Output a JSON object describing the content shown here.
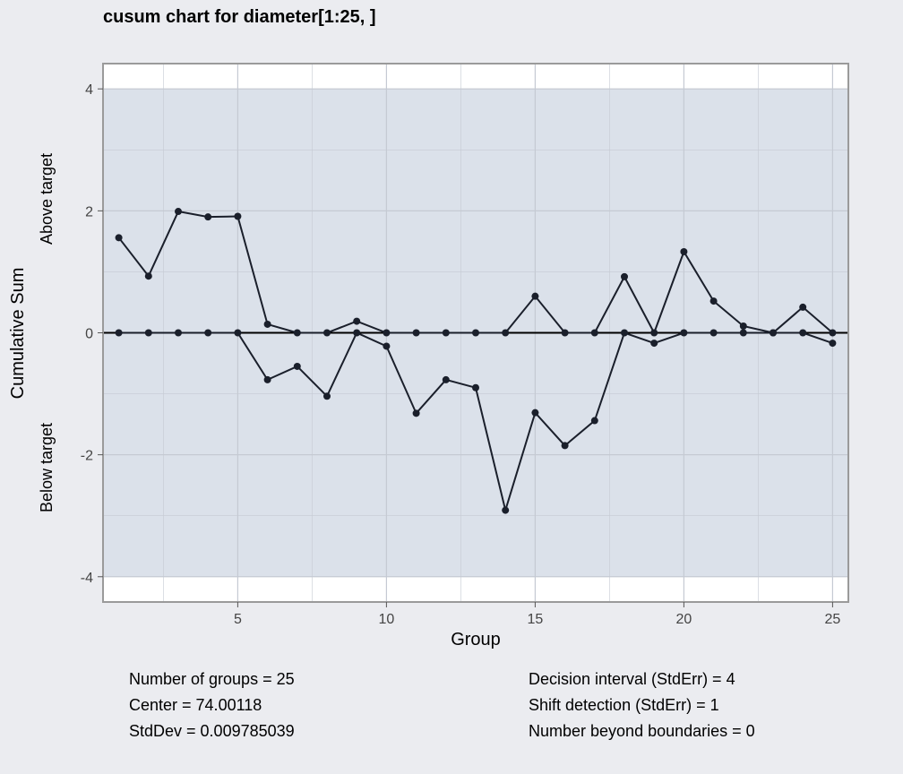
{
  "chart_data": {
    "type": "line",
    "title": "cusum chart for diameter[1:25, ]",
    "xlabel": "Group",
    "ylabel": "Cumulative Sum",
    "ylabel_above": "Above target",
    "ylabel_below": "Below target",
    "xlim": [
      0.5,
      25.5
    ],
    "ylim": [
      -4.4,
      4.4
    ],
    "x_ticks": [
      5,
      10,
      15,
      20,
      25
    ],
    "y_ticks": [
      -4,
      -2,
      0,
      2,
      4
    ],
    "decision_limits": [
      -4,
      4
    ],
    "center_line": 0,
    "grid": true,
    "x": [
      1,
      2,
      3,
      4,
      5,
      6,
      7,
      8,
      9,
      10,
      11,
      12,
      13,
      14,
      15,
      16,
      17,
      18,
      19,
      20,
      21,
      22,
      23,
      24,
      25
    ],
    "series": [
      {
        "values": [
          1.56,
          0.93,
          1.99,
          1.9,
          1.91,
          0.14,
          0.0,
          0.0,
          0.19,
          0.0,
          0.0,
          0.0,
          0.0,
          0.0,
          0.6,
          0.0,
          0.0,
          0.92,
          0.0,
          1.33,
          0.52,
          0.11,
          0.0,
          0.42,
          0.0
        ]
      },
      {
        "values": [
          0.0,
          0.0,
          0.0,
          0.0,
          0.0,
          -0.77,
          -0.55,
          -1.04,
          0.0,
          -0.22,
          -1.32,
          -0.77,
          -0.9,
          -2.91,
          -1.31,
          -1.85,
          -1.44,
          0.0,
          -0.17,
          0.0,
          0.0,
          0.0,
          0.0,
          0.0,
          -0.17
        ]
      }
    ],
    "colors": {
      "line": "#1a1f2b",
      "zone": "#dbe1ea",
      "grid": "#c5cad3",
      "page_bg": "#ebecf0",
      "plot_bg": "#ffffff",
      "frame": "#9a9a9a"
    }
  },
  "stats": {
    "left": [
      "Number of groups = 25",
      "Center = 74.00118",
      "StdDev = 0.009785039"
    ],
    "right": [
      "Decision interval (StdErr) = 4",
      "Shift detection (StdErr) = 1",
      "Number beyond boundaries = 0"
    ]
  }
}
